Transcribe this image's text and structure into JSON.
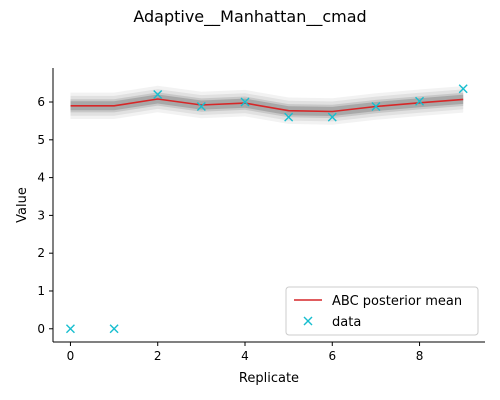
{
  "chart_data": {
    "type": "line",
    "title": "Adaptive__Manhattan__cmad",
    "xlabel": "Replicate",
    "ylabel": "Value",
    "xlim": [
      -0.4,
      9.5
    ],
    "ylim": [
      -0.35,
      6.9
    ],
    "xticks": [
      0,
      2,
      4,
      6,
      8
    ],
    "yticks": [
      0,
      1,
      2,
      3,
      4,
      5,
      6
    ],
    "x": [
      0,
      1,
      2,
      3,
      4,
      5,
      6,
      7,
      8,
      9
    ],
    "series": [
      {
        "name": "ABC posterior mean",
        "kind": "line",
        "color": "#d62728",
        "values": [
          5.9,
          5.9,
          6.08,
          5.92,
          5.97,
          5.77,
          5.75,
          5.88,
          5.98,
          6.07
        ]
      },
      {
        "name": "data",
        "kind": "scatter",
        "marker": "x",
        "color": "#17becf",
        "values": [
          0.0,
          0.0,
          6.2,
          5.88,
          6.0,
          5.6,
          5.6,
          5.88,
          6.02,
          6.35
        ]
      }
    ],
    "posterior_band": {
      "color": "#808080",
      "inner_halfwidth": 0.12,
      "outer_halfwidth": 0.35
    },
    "legend": {
      "position": "lower-right",
      "entries": [
        "ABC posterior mean",
        "data"
      ]
    },
    "grid": false
  }
}
